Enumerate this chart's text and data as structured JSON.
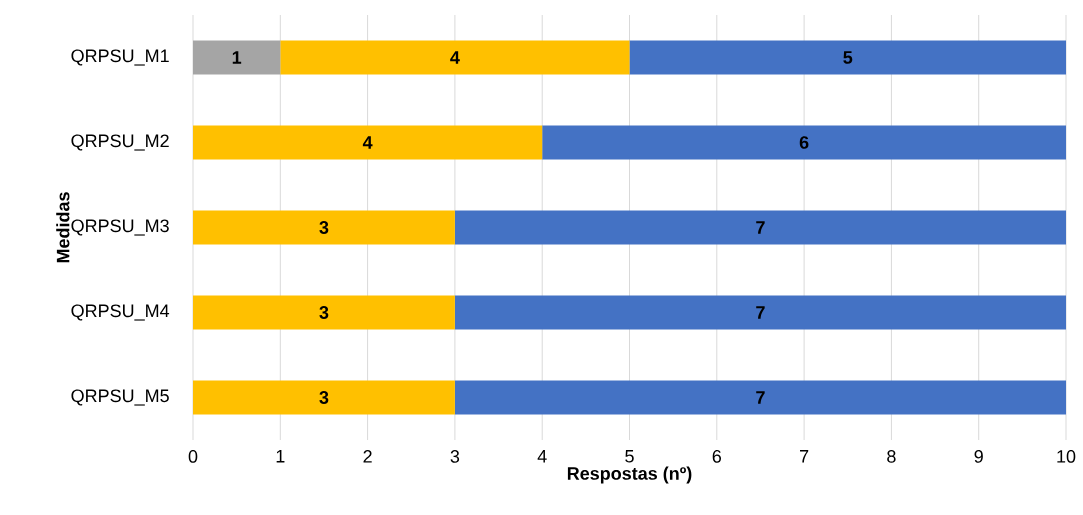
{
  "chart_data": {
    "type": "bar",
    "orientation": "horizontal",
    "stacked": true,
    "xlabel": "Respostas (nº)",
    "ylabel": "Medidas",
    "categories": [
      "QRPSU_M1",
      "QRPSU_M2",
      "QRPSU_M3",
      "QRPSU_M4",
      "QRPSU_M5"
    ],
    "series": [
      {
        "color": "#a5a5a5",
        "values": [
          1,
          null,
          null,
          null,
          null
        ]
      },
      {
        "color": "#ffc000",
        "values": [
          4,
          4,
          3,
          3,
          3
        ]
      },
      {
        "color": "#4472c4",
        "values": [
          5,
          6,
          7,
          7,
          7
        ]
      }
    ],
    "xlim": [
      0,
      10
    ],
    "xticks": [
      0,
      1,
      2,
      3,
      4,
      5,
      6,
      7,
      8,
      9,
      10
    ],
    "grid": "x",
    "data_labels": true
  }
}
